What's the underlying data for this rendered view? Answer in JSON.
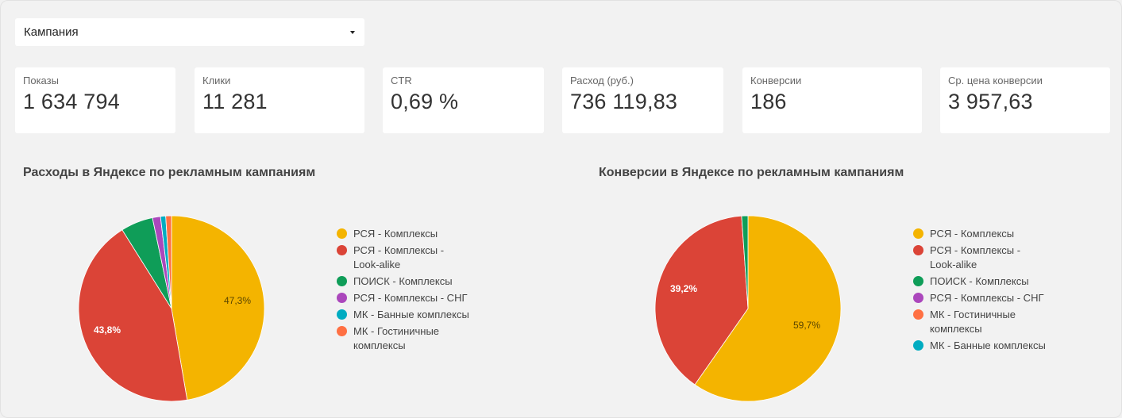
{
  "filter": {
    "label": "Кампания"
  },
  "kpis": [
    {
      "label": "Показы",
      "value": "1 634 794"
    },
    {
      "label": "Клики",
      "value": "11 281"
    },
    {
      "label": "CTR",
      "value": "0,69 %"
    },
    {
      "label": "Расход (руб.)",
      "value": "736 119,83"
    },
    {
      "label": "Конверсии",
      "value": "186"
    },
    {
      "label": "Ср. цена конверсии",
      "value": "3 957,63"
    }
  ],
  "chart_data": [
    {
      "type": "pie",
      "title": "Расходы в Яндексе по рекламным кампаниям",
      "legend": "right",
      "slices": [
        {
          "label": "РСЯ - Комплексы",
          "value": 47.3,
          "display": "47,3%",
          "color": "#f4b400"
        },
        {
          "label": "РСЯ - Комплексы - Look-alike",
          "value": 43.8,
          "display": "43,8%",
          "color": "#db4437"
        },
        {
          "label": "ПОИСК - Комплексы",
          "value": 5.6,
          "display": "",
          "color": "#0f9d58"
        },
        {
          "label": "РСЯ - Комплексы - СНГ",
          "value": 1.4,
          "display": "",
          "color": "#ab47bc"
        },
        {
          "label": "МК - Банные комплексы",
          "value": 0.9,
          "display": "",
          "color": "#00acc1"
        },
        {
          "label": "МК - Гостиничные комплексы",
          "value": 1.0,
          "display": "",
          "color": "#ff7043"
        }
      ]
    },
    {
      "type": "pie",
      "title": "Конверсии в Яндексе по рекламным кампаниям",
      "legend": "right",
      "slices": [
        {
          "label": "РСЯ - Комплексы",
          "value": 59.7,
          "display": "59,7%",
          "color": "#f4b400"
        },
        {
          "label": "РСЯ - Комплексы - Look-alike",
          "value": 39.2,
          "display": "39,2%",
          "color": "#db4437"
        },
        {
          "label": "ПОИСК - Комплексы",
          "value": 1.1,
          "display": "",
          "color": "#0f9d58"
        },
        {
          "label": "РСЯ - Комплексы - СНГ",
          "value": 0,
          "display": "",
          "color": "#ab47bc"
        },
        {
          "label": "МК - Гостиничные комплексы",
          "value": 0,
          "display": "",
          "color": "#ff7043"
        },
        {
          "label": "МК - Банные комплексы",
          "value": 0,
          "display": "",
          "color": "#00acc1"
        }
      ]
    }
  ]
}
